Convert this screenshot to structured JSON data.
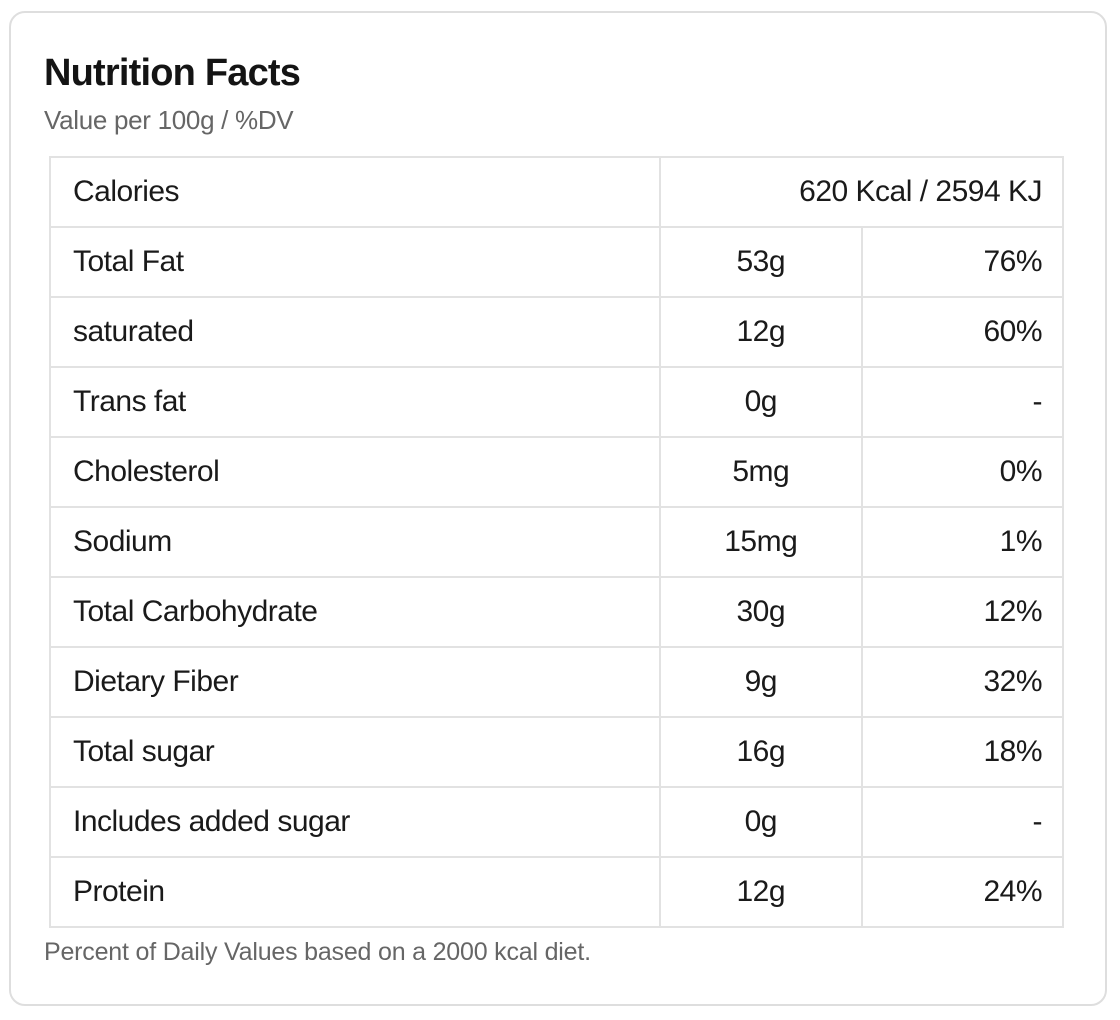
{
  "card": {
    "title": "Nutrition Facts",
    "subtitle": "Value per 100g / %DV",
    "footnote": "Percent of Daily Values based on a 2000 kcal diet."
  },
  "table": {
    "calories_row": {
      "label": "Calories",
      "value": "620 Kcal / 2594 KJ"
    },
    "rows": [
      {
        "label": "Total Fat",
        "amount": "53g",
        "dv": "76%"
      },
      {
        "label": "saturated",
        "amount": "12g",
        "dv": "60%"
      },
      {
        "label": "Trans fat",
        "amount": "0g",
        "dv": "-"
      },
      {
        "label": "Cholesterol",
        "amount": "5mg",
        "dv": "0%"
      },
      {
        "label": "Sodium",
        "amount": "15mg",
        "dv": "1%"
      },
      {
        "label": "Total Carbohydrate",
        "amount": "30g",
        "dv": "12%"
      },
      {
        "label": "Dietary Fiber",
        "amount": "9g",
        "dv": "32%"
      },
      {
        "label": "Total sugar",
        "amount": "16g",
        "dv": "18%"
      },
      {
        "label": "Includes added sugar",
        "amount": "0g",
        "dv": "-"
      },
      {
        "label": "Protein",
        "amount": "12g",
        "dv": "24%"
      }
    ]
  },
  "colors": {
    "background": "#ffffff",
    "card_border": "#dedede",
    "table_border": "#e2e2e2",
    "text_primary": "#1a1a1a",
    "text_secondary": "#666666"
  }
}
